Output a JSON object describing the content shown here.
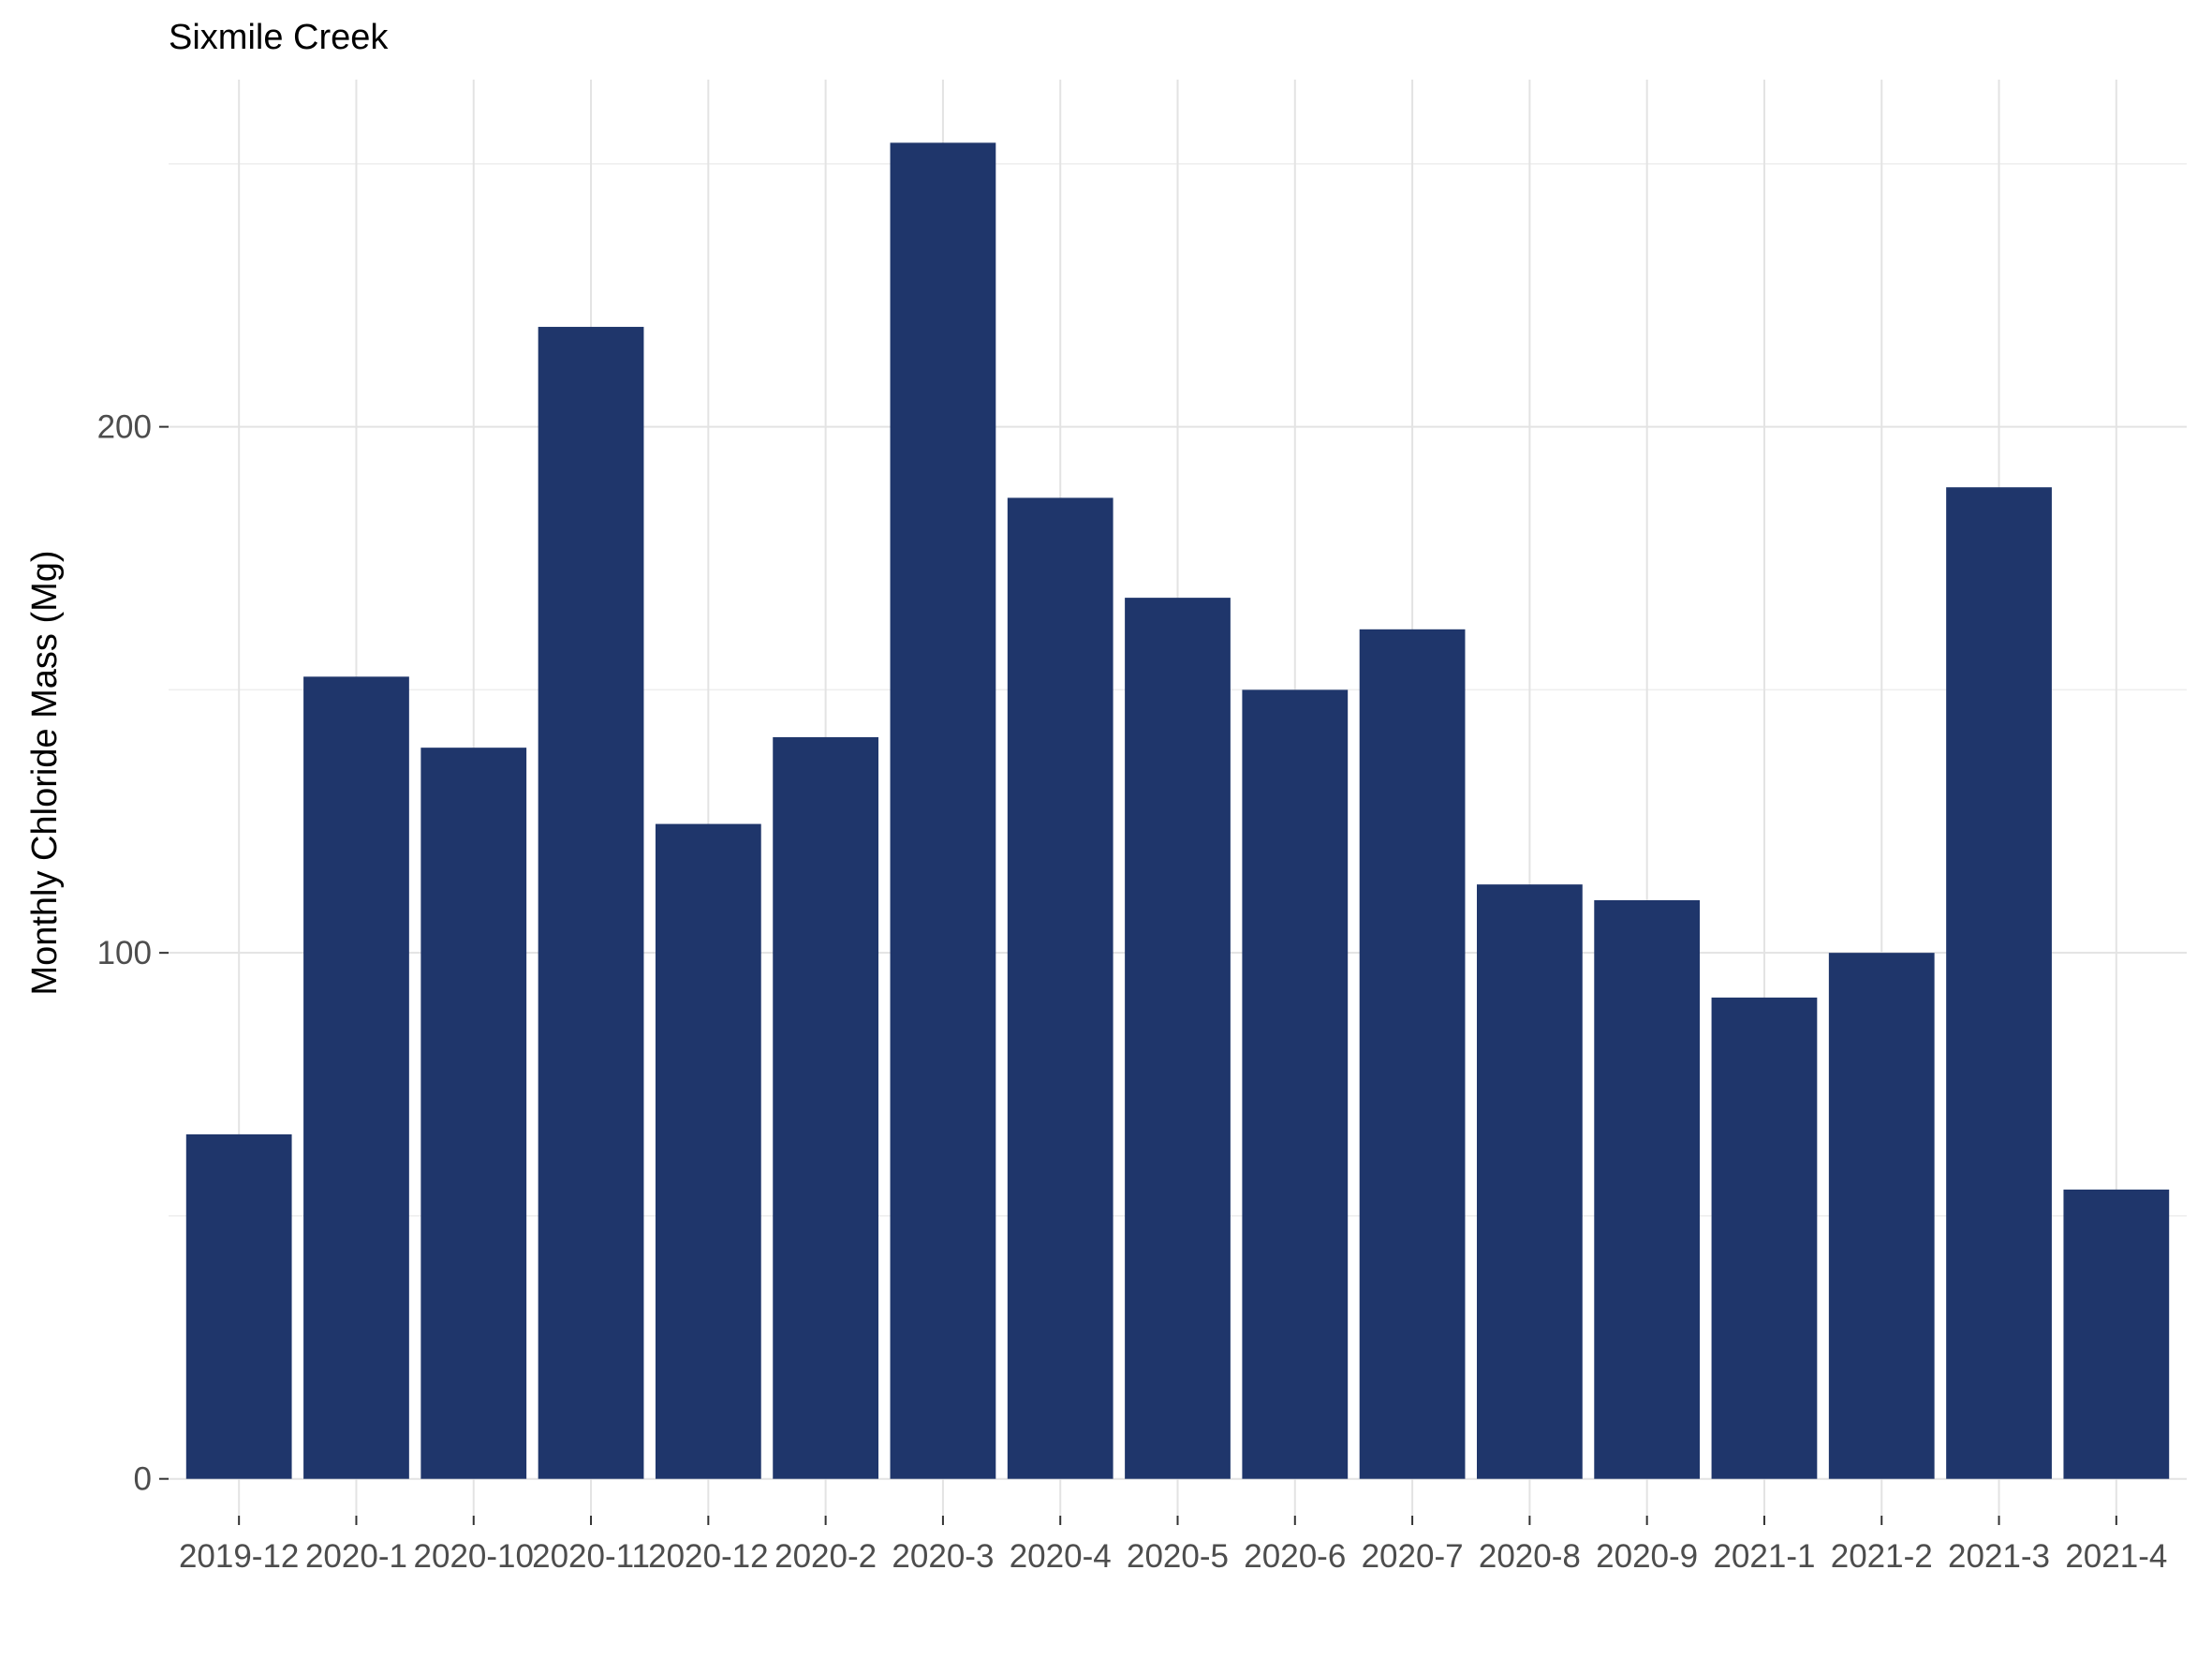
{
  "chart_data": {
    "type": "bar",
    "title": "Sixmile Creek",
    "xlabel": "",
    "ylabel": "Monthly Chloride Mass  (Mg)",
    "categories": [
      "2019-12",
      "2020-1",
      "2020-10",
      "2020-11",
      "2020-12",
      "2020-2",
      "2020-3",
      "2020-4",
      "2020-5",
      "2020-6",
      "2020-7",
      "2020-8",
      "2020-9",
      "2021-1",
      "2021-2",
      "2021-3",
      "2021-4"
    ],
    "values": [
      65.5,
      152.5,
      139,
      219,
      124.5,
      141,
      254,
      186.5,
      167.5,
      150,
      161.5,
      113,
      110,
      91.5,
      100,
      188.5,
      55
    ],
    "ylim": [
      -7,
      266
    ],
    "y_ticks": [
      0,
      100,
      200
    ],
    "y_tick_labels": [
      "0",
      "100",
      "200"
    ],
    "grid": true,
    "bar_color": "#1f366b"
  }
}
